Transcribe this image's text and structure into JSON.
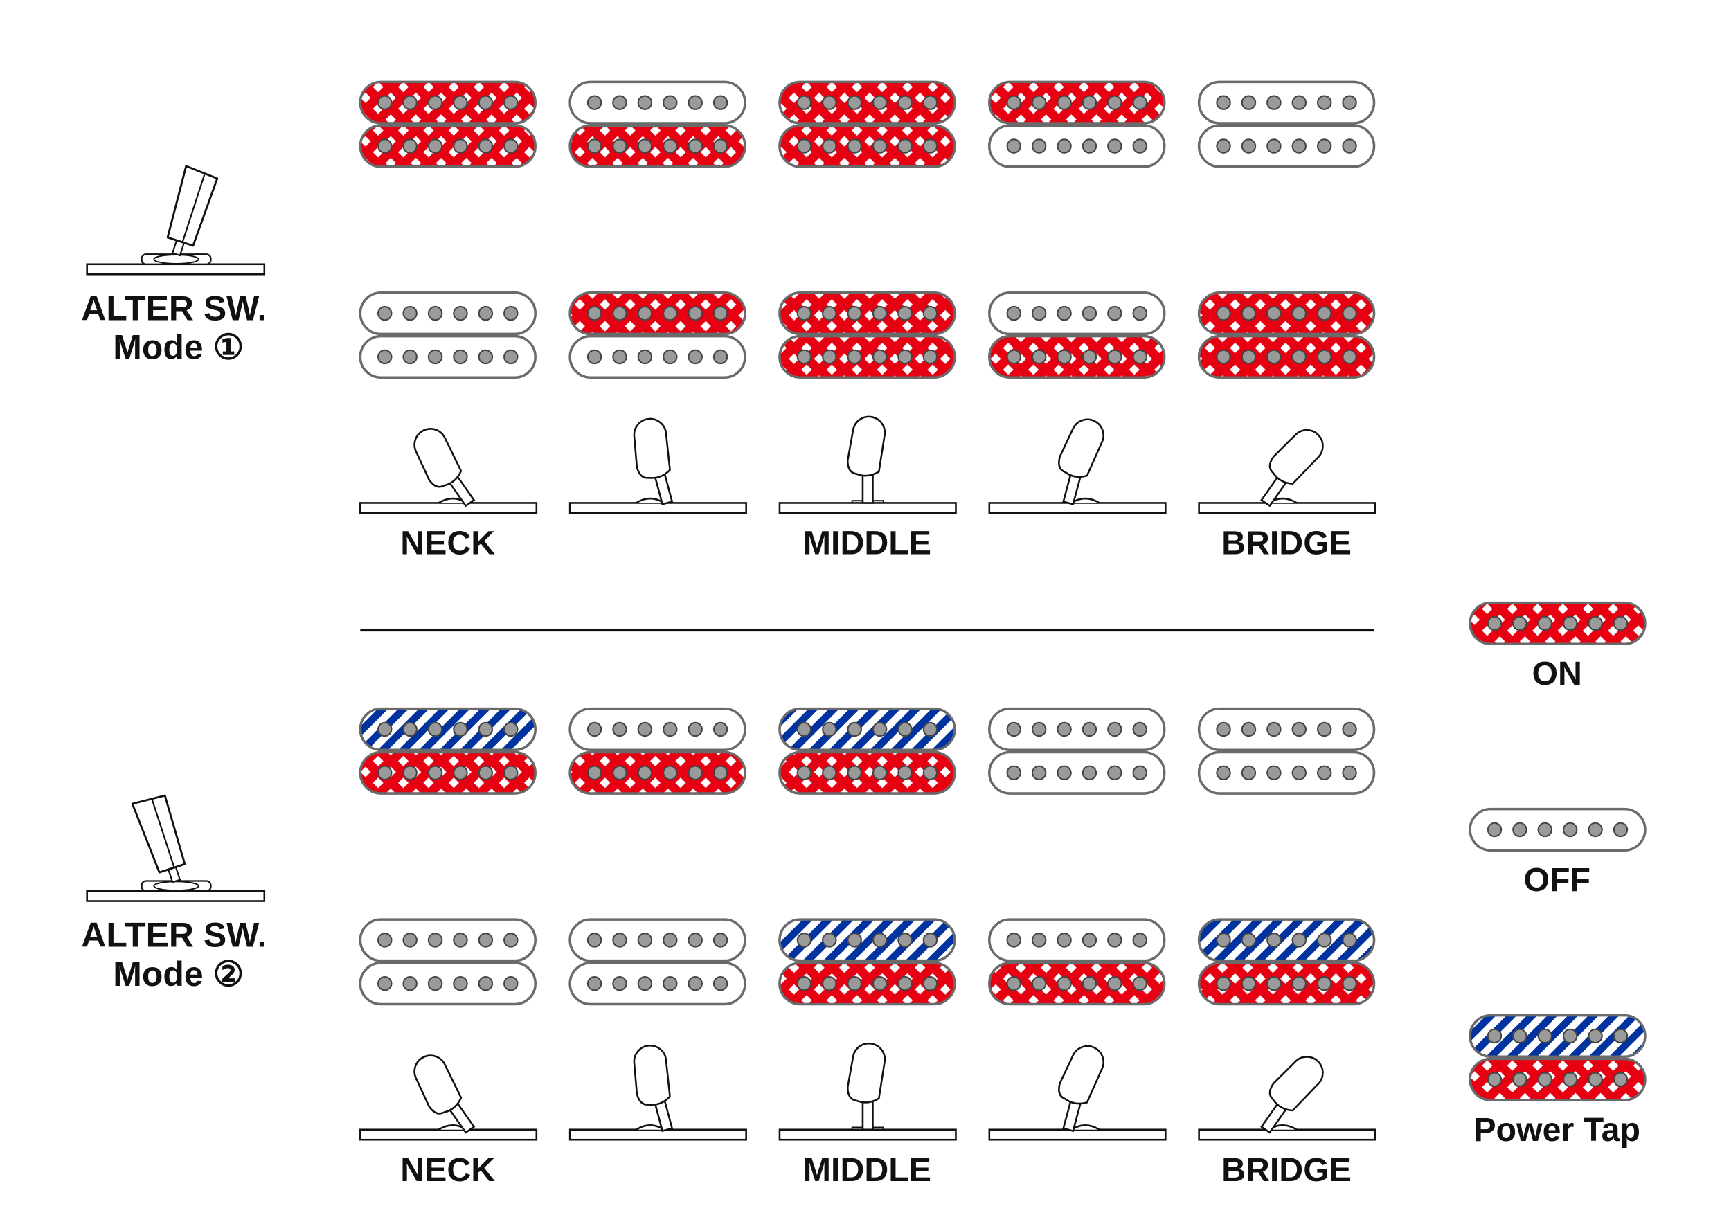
{
  "colors": {
    "on_red": "#e60012",
    "power_tap_blue": "#0033a0",
    "pole_gray": "#999999",
    "outline": "#666666"
  },
  "switch_positions": {
    "labels": [
      "NECK",
      "",
      "MIDDLE",
      "",
      "BRIDGE"
    ]
  },
  "mode_panels": [
    {
      "switch_label": "ALTER SW.",
      "mode_label": "Mode ①",
      "alter_switch_lean": "right",
      "rows": [
        [
          [
            "on",
            "on"
          ],
          [
            "off",
            "on"
          ],
          [
            "on",
            "on"
          ],
          [
            "on",
            "off"
          ],
          [
            "off",
            "off"
          ]
        ],
        [
          [
            "off",
            "off"
          ],
          [
            "on",
            "off"
          ],
          [
            "on",
            "on"
          ],
          [
            "off",
            "on"
          ],
          [
            "on",
            "on"
          ]
        ]
      ]
    },
    {
      "switch_label": "ALTER SW.",
      "mode_label": "Mode ②",
      "alter_switch_lean": "left",
      "rows": [
        [
          [
            "tap",
            "on"
          ],
          [
            "off",
            "on"
          ],
          [
            "tap",
            "on"
          ],
          [
            "off",
            "off"
          ],
          [
            "off",
            "off"
          ]
        ],
        [
          [
            "off",
            "off"
          ],
          [
            "off",
            "off"
          ],
          [
            "tap",
            "on"
          ],
          [
            "off",
            "on"
          ],
          [
            "tap",
            "on"
          ]
        ]
      ]
    }
  ],
  "legend": {
    "on": "ON",
    "off": "OFF",
    "power_tap": "Power Tap"
  }
}
